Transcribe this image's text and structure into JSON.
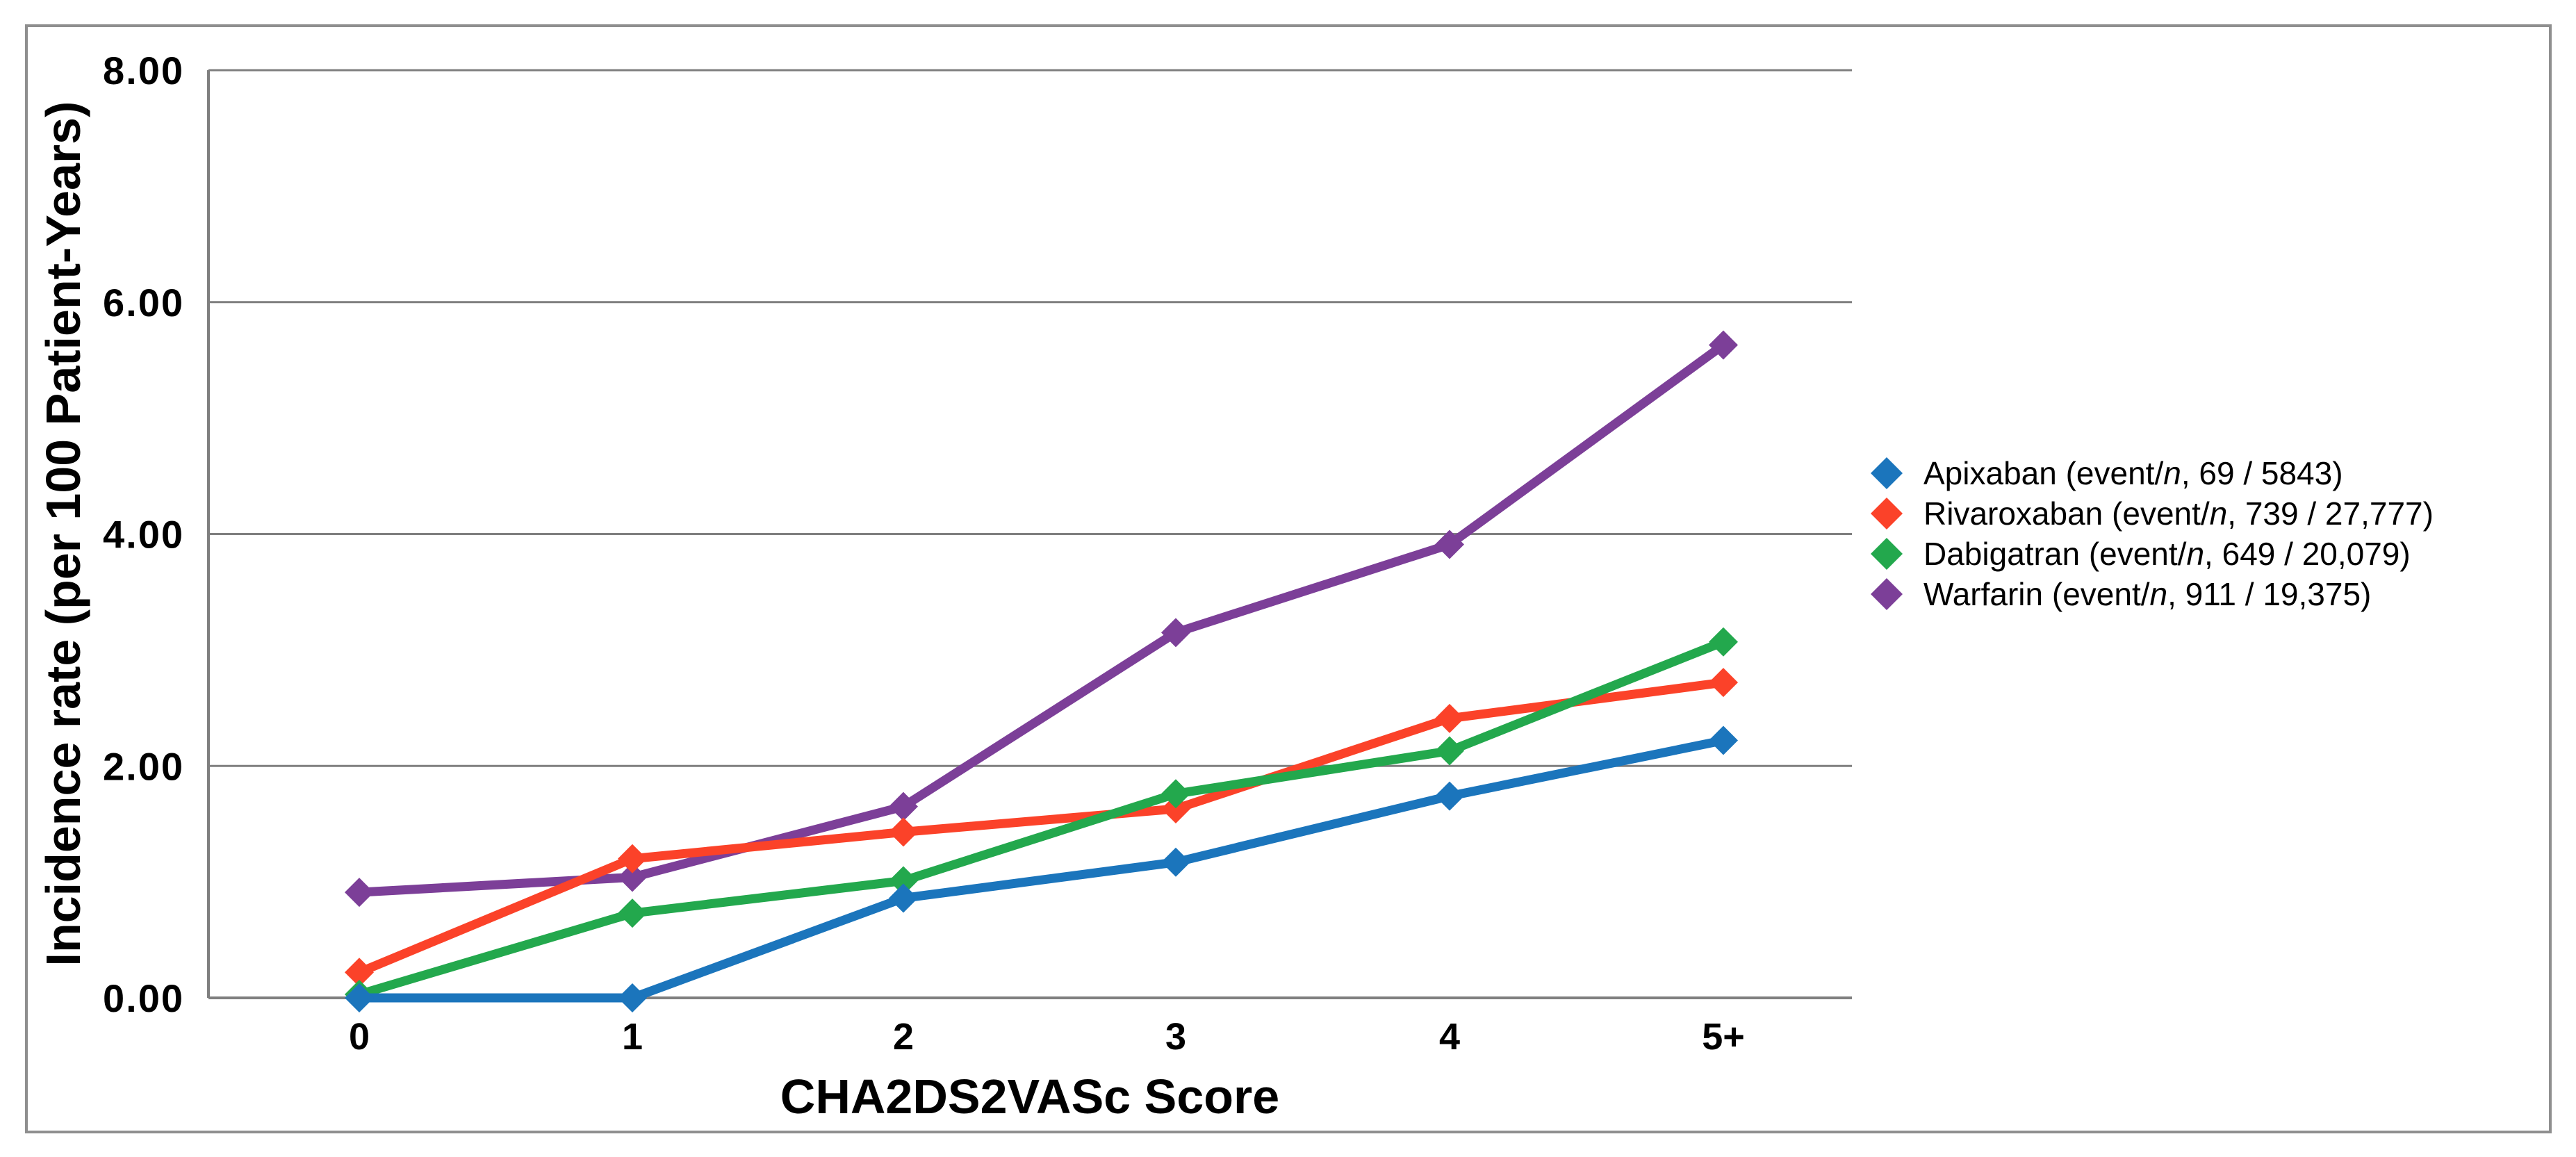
{
  "figure": {
    "background_color": "#FFFFFF",
    "border_color": "#8F8F8F",
    "gridline_color": "#7F7F7F",
    "text_color": "#000000"
  },
  "chart_data": {
    "type": "line",
    "title": "",
    "xlabel": "CHA2DS2VASc Score",
    "ylabel": "Incidence rate (per 100 Patient-Years)",
    "categories": [
      "0",
      "1",
      "2",
      "3",
      "4",
      "5+"
    ],
    "y_tick_labels": [
      "0.00",
      "2.00",
      "4.00",
      "6.00",
      "8.00"
    ],
    "y_tick_values": [
      0,
      2,
      4,
      6,
      8
    ],
    "ylim": [
      0,
      8
    ],
    "grid": "horizontal",
    "legend_position": "right-outside",
    "marker": "diamond",
    "series": [
      {
        "name": "Apixaban",
        "color": "#1B75BC",
        "values": [
          0.0,
          0.0,
          0.86,
          1.17,
          1.74,
          2.22
        ],
        "legend": {
          "lead": "Apixaban (event/",
          "italic": "n",
          "tail": ", 69 / 5843)"
        }
      },
      {
        "name": "Rivaroxaban",
        "color": "#FB4229",
        "values": [
          0.22,
          1.2,
          1.43,
          1.63,
          2.41,
          2.72
        ],
        "legend": {
          "lead": "Rivaroxaban (event/",
          "italic": "n",
          "tail": ", 739 / 27,777)"
        }
      },
      {
        "name": "Dabigatran",
        "color": "#23A84D",
        "values": [
          0.03,
          0.73,
          1.01,
          1.76,
          2.13,
          3.07
        ],
        "legend": {
          "lead": "Dabigatran (event/",
          "italic": "n",
          "tail": ", 649 / 20,079)"
        }
      },
      {
        "name": "Warfarin",
        "color": "#7C3F98",
        "values": [
          0.91,
          1.04,
          1.65,
          3.15,
          3.91,
          5.63
        ],
        "legend": {
          "lead": "Warfarin (event/",
          "italic": "n",
          "tail": ", 911 / 19,375)"
        }
      }
    ]
  }
}
